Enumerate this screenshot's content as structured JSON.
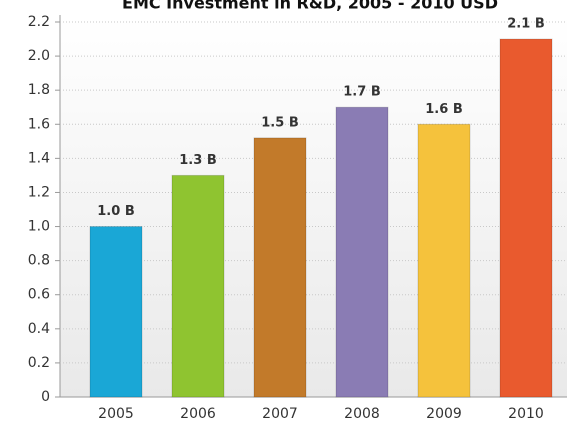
{
  "chart_data": {
    "type": "bar",
    "title": "EMC Investment in R&D, 2005 - 2010 USD",
    "categories": [
      "2005",
      "2006",
      "2007",
      "2008",
      "2009",
      "2010"
    ],
    "values": [
      1.0,
      1.3,
      1.52,
      1.7,
      1.6,
      2.1
    ],
    "value_labels": [
      "1.0 B",
      "1.3 B",
      "1.5 B",
      "1.7 B",
      "1.6 B",
      "2.1 B"
    ],
    "colors": [
      "#1aa7d6",
      "#8fc430",
      "#c27a2a",
      "#8a7cb4",
      "#f5c23c",
      "#e95a2e"
    ],
    "ylim": [
      0,
      2.2
    ],
    "yticks": [
      0,
      0.2,
      0.4,
      0.6,
      0.8,
      {
        "value": 1.0,
        "label": "1.0"
      },
      1.2,
      1.4,
      1.6,
      1.8,
      {
        "value": 2.0,
        "label": "2.0"
      },
      2.2
    ],
    "grid": true
  }
}
